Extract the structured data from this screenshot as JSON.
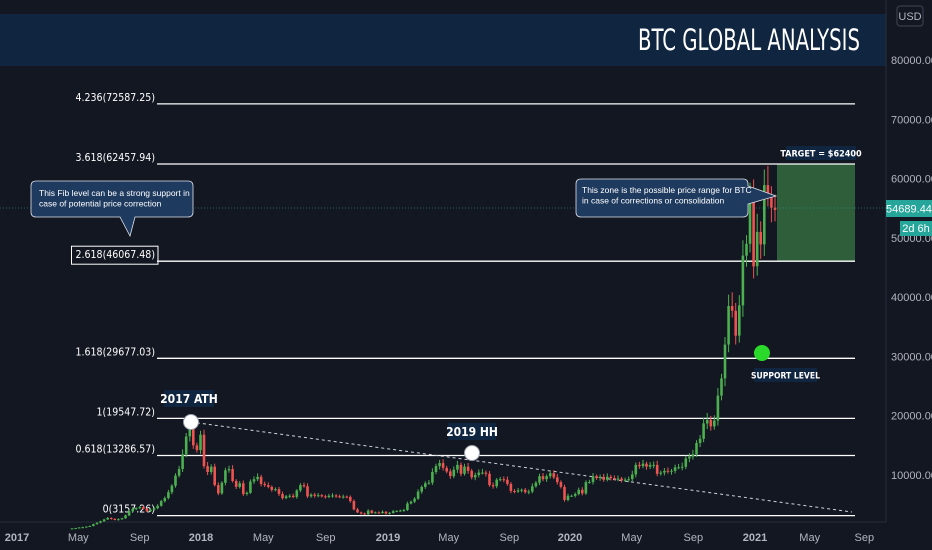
{
  "header": {
    "title": "BTC GLOBAL ANALYSIS",
    "currency": "USD"
  },
  "colors": {
    "background": "#131722",
    "header_band": "#0f2540",
    "up": "#26a69a",
    "up_green": "#4caf50",
    "down": "#ef5350",
    "fib_line": "#ffffff",
    "target_zone": "#2e5e3a",
    "support_dot": "#2bd92b",
    "callout_bg": "#1e3a5f",
    "price_tag": "#26a69a"
  },
  "chart_data": {
    "type": "candlestick",
    "title": "BTC GLOBAL ANALYSIS",
    "y_axis": {
      "ticks": [
        "80000.00",
        "70000.00",
        "60000.00",
        "50000.00",
        "40000.00",
        "30000.00",
        "20000.00",
        "10000.00"
      ],
      "range": [
        2000,
        87000
      ]
    },
    "x_axis": {
      "ticks": [
        "2017",
        "May",
        "Sep",
        "2018",
        "May",
        "Sep",
        "2019",
        "May",
        "Sep",
        "2020",
        "May",
        "Sep",
        "2021",
        "May",
        "Sep"
      ]
    },
    "fib_levels": [
      {
        "label": "4.236(72587.25)",
        "value": 72587.25
      },
      {
        "label": "3.618(62457.94)",
        "value": 62457.94
      },
      {
        "label": "2.618(46067.48)",
        "value": 46067.48
      },
      {
        "label": "1.618(29677.03)",
        "value": 29677.03
      },
      {
        "label": "1(19547.72)",
        "value": 19547.72
      },
      {
        "label": "0.618(13286.57)",
        "value": 13286.57
      },
      {
        "label": "0(3157.26)",
        "value": 3157.26
      }
    ],
    "current_price": "54689.44",
    "countdown": "2d 6h",
    "target_zone": {
      "low": 46067.48,
      "high": 62457.94,
      "label": "TARGET = $62400"
    },
    "annotations": {
      "ath": "2017 ATH",
      "hh": "2019 HH",
      "support": "SUPPORT LEVEL",
      "fib_note": "This Fib level can be a strong support in case of potential price correction",
      "zone_note": "This zone is the possible price range for BTC in case of corrections or consolidation"
    },
    "weekly_closes": [
      1000,
      1050,
      1150,
      1200,
      1300,
      1400,
      1700,
      1950,
      2200,
      2500,
      2750,
      2600,
      2450,
      2550,
      2700,
      3200,
      3900,
      4300,
      4400,
      4600,
      4300,
      3900,
      4150,
      4400,
      4800,
      5600,
      6100,
      7100,
      8200,
      9900,
      11000,
      13500,
      16500,
      19000,
      15000,
      14200,
      16800,
      11500,
      10500,
      11400,
      8300,
      6900,
      8700,
      10800,
      11000,
      9000,
      8000,
      8600,
      6800,
      7000,
      8900,
      9300,
      9700,
      8500,
      8300,
      8000,
      7500,
      7600,
      6800,
      6100,
      6400,
      6500,
      6300,
      7400,
      8300,
      8100,
      6400,
      6700,
      6500,
      6600,
      6400,
      6300,
      6500,
      6550,
      6400,
      6300,
      6350,
      6300,
      5600,
      4200,
      3700,
      3500,
      3400,
      4000,
      3600,
      3700,
      3600,
      3800,
      3500,
      3600,
      3900,
      3950,
      4000,
      4100,
      5200,
      5500,
      6000,
      7200,
      8000,
      8600,
      8700,
      10500,
      11500,
      12000,
      11200,
      10600,
      9800,
      10900,
      11700,
      10200,
      11400,
      10700,
      9600,
      10000,
      10400,
      10400,
      10200,
      8300,
      8100,
      9200,
      9300,
      9200,
      8500,
      7300,
      7200,
      7400,
      7500,
      7100,
      7200,
      8100,
      8700,
      9800,
      9300,
      9800,
      10300,
      9600,
      8800,
      8000,
      5800,
      6500,
      6500,
      6800,
      7500,
      6900,
      8800,
      8800,
      9800,
      9500,
      9700,
      9200,
      9700,
      9500,
      9400,
      9400,
      9100,
      9200,
      9300,
      10100,
      11700,
      11500,
      11900,
      11400,
      11700,
      11700,
      10200,
      10400,
      10700,
      10600,
      10700,
      11300,
      11300,
      11400,
      12800,
      13100,
      13500,
      15400,
      16100,
      18700,
      19300,
      18200,
      19200,
      23400,
      26300,
      32000,
      38500,
      37700,
      33500,
      38600,
      47000,
      49000,
      57000,
      45200,
      51000,
      48900,
      58900,
      57000,
      55100,
      54689
    ]
  }
}
